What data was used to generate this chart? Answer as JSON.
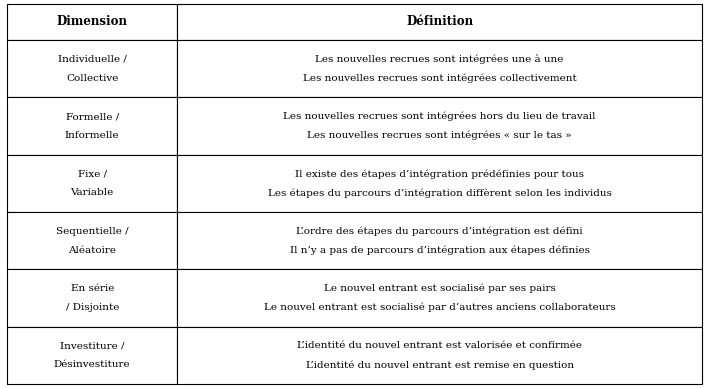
{
  "col_headers": [
    "Dimension",
    "Définition"
  ],
  "rows": [
    {
      "dim_line1": "Individuelle /",
      "dim_line2": "Collective",
      "def_line1": "Les nouvelles recrues sont intégrées une à une",
      "def_line2": "Les nouvelles recrues sont intégrées collectivement"
    },
    {
      "dim_line1": "Formelle /",
      "dim_line2": "Informelle",
      "def_line1": "Les nouvelles recrues sont intégrées hors du lieu de travail",
      "def_line2": "Les nouvelles recrues sont intégrées « sur le tas »"
    },
    {
      "dim_line1": "Fixe /",
      "dim_line2": "Variable",
      "def_line1": "Il existe des étapes d’intégration prédéfinies pour tous",
      "def_line2": "Les étapes du parcours d’intégration diffèrent selon les individus"
    },
    {
      "dim_line1": "Sequentielle /",
      "dim_line2": "Aléatoire",
      "def_line1": "L’ordre des étapes du parcours d’intégration est défini",
      "def_line2": "Il n’y a pas de parcours d’intégration aux étapes définies"
    },
    {
      "dim_line1": "En série",
      "dim_line2": "/ Disjointe",
      "def_line1": "Le nouvel entrant est socialisé par ses pairs",
      "def_line2": "Le nouvel entrant est socialisé par d’autres anciens collaborateurs"
    },
    {
      "dim_line1": "Investiture /",
      "dim_line2": "Désinvestiture",
      "def_line1": "L’identité du nouvel entrant est valorisée et confirmée",
      "def_line2": "L’identité du nouvel entrant est remise en question"
    }
  ],
  "col_split": 0.245,
  "header_bg": "#ffffff",
  "row_bg": "#ffffff",
  "border_color": "#000000",
  "header_fontsize": 8.5,
  "cell_fontsize": 7.5,
  "fig_width": 7.09,
  "fig_height": 3.88,
  "dpi": 100
}
